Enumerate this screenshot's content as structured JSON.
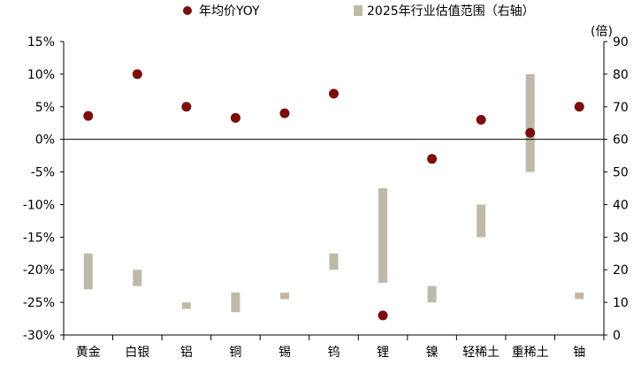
{
  "legend": {
    "dot_label": "年均价YOY",
    "bar_label": "2025年行业估值范围（右轴）"
  },
  "colors": {
    "dot": "#7b0d0d",
    "bar": "#bfb9a8",
    "axis": "#000000"
  },
  "chart_data": {
    "type": "combo",
    "categories": [
      "黄金",
      "白银",
      "铝",
      "铜",
      "锡",
      "钨",
      "锂",
      "镍",
      "轻稀土",
      "重稀土",
      "铀"
    ],
    "series": [
      {
        "name": "年均价YOY",
        "kind": "scatter",
        "axis": "left",
        "values": [
          3.6,
          10.0,
          5.0,
          3.3,
          4.0,
          7.0,
          -27.0,
          -3.0,
          3.0,
          1.0,
          5.0
        ]
      },
      {
        "name": "2025年行业估值范围（右轴）",
        "kind": "floating-bar",
        "axis": "right",
        "ranges": [
          [
            14,
            25
          ],
          [
            15,
            20
          ],
          [
            8,
            10
          ],
          [
            7,
            13
          ],
          [
            11,
            13
          ],
          [
            20,
            25
          ],
          [
            16,
            45
          ],
          [
            10,
            15
          ],
          [
            30,
            40
          ],
          [
            50,
            80
          ],
          [
            11,
            13
          ]
        ]
      }
    ],
    "left_axis": {
      "ylim": [
        -30,
        15
      ],
      "ticks": [
        15,
        10,
        5,
        0,
        -5,
        -10,
        -15,
        -20,
        -25,
        -30
      ],
      "tick_labels": [
        "15%",
        "10%",
        "5%",
        "0%",
        "-5%",
        "-10%",
        "-15%",
        "-20%",
        "-25%",
        "-30%"
      ]
    },
    "right_axis": {
      "ylim": [
        0,
        90
      ],
      "unit_label": "(倍)",
      "ticks": [
        90,
        80,
        70,
        60,
        50,
        40,
        30,
        20,
        10,
        0
      ],
      "tick_labels": [
        "90",
        "80",
        "70",
        "60",
        "50",
        "40",
        "30",
        "20",
        "10",
        "0"
      ]
    },
    "grid": false,
    "legend_position": "top"
  }
}
